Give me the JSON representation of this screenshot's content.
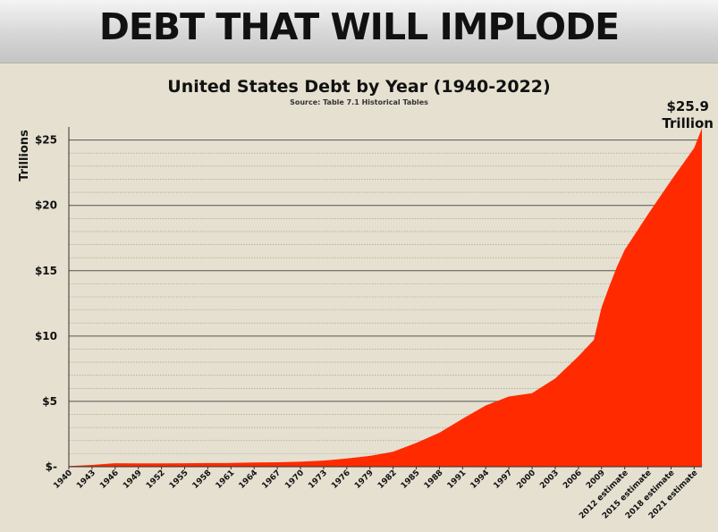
{
  "banner": {
    "title": "DEBT THAT WILL IMPLODE"
  },
  "chart_data": {
    "type": "area",
    "title": "United States Debt by Year (1940-2022)",
    "subtitle": "Source: Table 7.1 Historical Tables",
    "ylabel": "Trillions",
    "ylim": [
      0,
      26
    ],
    "yticks": [
      0,
      5,
      10,
      15,
      20,
      25
    ],
    "ytick_labels": [
      "$-",
      "$5",
      "$10",
      "$15",
      "$20",
      "$25"
    ],
    "grid": true,
    "legend": "none",
    "fill_color": "#ff2a00",
    "series": [
      {
        "x": [
          1940,
          1943,
          1946,
          1949,
          1952,
          1955,
          1958,
          1961,
          1964,
          1967,
          1970,
          1973,
          1976,
          1979,
          1982,
          1985,
          1988,
          1991,
          1994,
          1997,
          2000,
          2003,
          2006,
          2008,
          2009,
          2010,
          2011,
          2012,
          2015,
          2018,
          2021,
          2022
        ],
        "values": [
          0.05,
          0.14,
          0.27,
          0.25,
          0.26,
          0.27,
          0.28,
          0.29,
          0.32,
          0.34,
          0.38,
          0.47,
          0.63,
          0.83,
          1.14,
          1.82,
          2.6,
          3.67,
          4.69,
          5.37,
          5.63,
          6.76,
          8.45,
          9.7,
          12.2,
          13.8,
          15.3,
          16.6,
          19.3,
          21.9,
          24.4,
          25.9
        ]
      }
    ],
    "xtick_labels": [
      {
        "x": 1940,
        "label": "1940"
      },
      {
        "x": 1943,
        "label": "1943"
      },
      {
        "x": 1946,
        "label": "1946"
      },
      {
        "x": 1949,
        "label": "1949"
      },
      {
        "x": 1952,
        "label": "1952"
      },
      {
        "x": 1955,
        "label": "1955"
      },
      {
        "x": 1958,
        "label": "1958"
      },
      {
        "x": 1961,
        "label": "1961"
      },
      {
        "x": 1964,
        "label": "1964"
      },
      {
        "x": 1967,
        "label": "1967"
      },
      {
        "x": 1970,
        "label": "1970"
      },
      {
        "x": 1973,
        "label": "1973"
      },
      {
        "x": 1976,
        "label": "1976"
      },
      {
        "x": 1979,
        "label": "1979"
      },
      {
        "x": 1982,
        "label": "1982"
      },
      {
        "x": 1985,
        "label": "1985"
      },
      {
        "x": 1988,
        "label": "1988"
      },
      {
        "x": 1991,
        "label": "1991"
      },
      {
        "x": 1994,
        "label": "1994"
      },
      {
        "x": 1997,
        "label": "1997"
      },
      {
        "x": 2000,
        "label": "2000"
      },
      {
        "x": 2003,
        "label": "2003"
      },
      {
        "x": 2006,
        "label": "2006"
      },
      {
        "x": 2009,
        "label": "2009"
      },
      {
        "x": 2012,
        "label": "2012 estimate"
      },
      {
        "x": 2015,
        "label": "2015 estimate"
      },
      {
        "x": 2018,
        "label": "2018 estimate"
      },
      {
        "x": 2021,
        "label": "2021 estimate"
      }
    ],
    "annotation": {
      "value": 25.9,
      "line1": "$25.9",
      "line2": "Trillion"
    }
  }
}
